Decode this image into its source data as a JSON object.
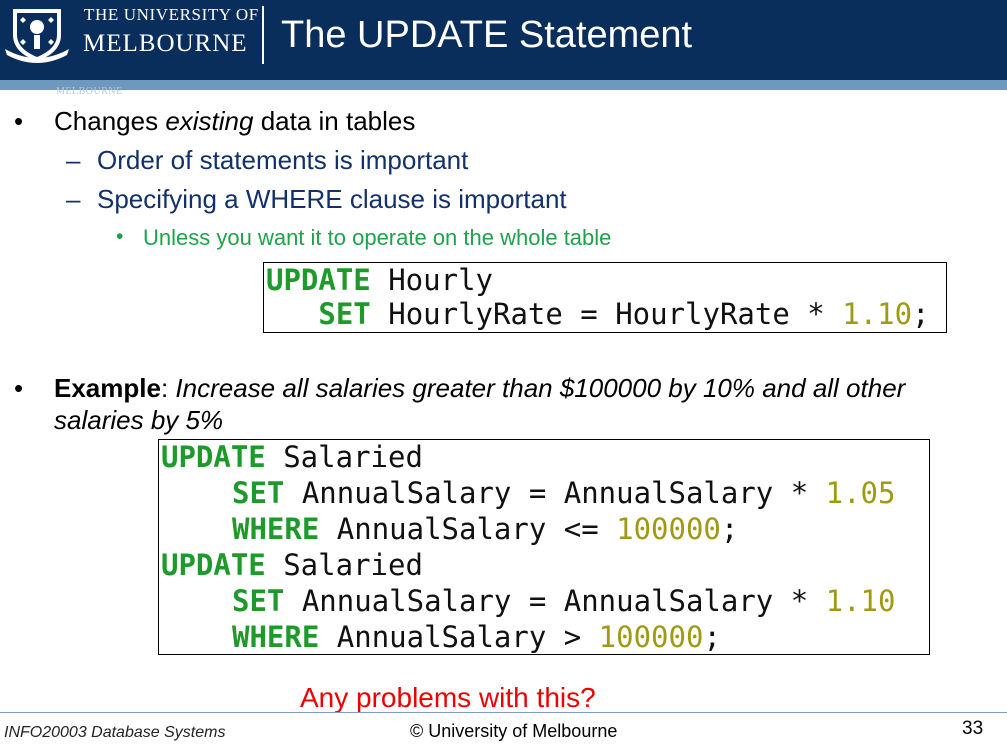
{
  "header": {
    "logo_line1": "THE UNIVERSITY OF",
    "logo_line2": "MELBOURNE",
    "crest_text": "MELBOURNE",
    "title": "The UPDATE Statement"
  },
  "bullets": {
    "b1_prefix": "Changes ",
    "b1_em": "existing",
    "b1_suffix": " data in tables",
    "b1_sub1": "Order of statements is important",
    "b1_sub2": "Specifying a WHERE clause is important",
    "b1_sub2_sub": "Unless you want it to operate on the whole table",
    "bullet_char": "•",
    "dash_char": "–",
    "b2_bold": "Example",
    "b2_colon": ": ",
    "b2_text_line1": "Increase all salaries greater than $100000 by 10% and all other",
    "b2_text_line2": "salaries by 5%"
  },
  "code1": {
    "l1_kw": "UPDATE",
    "l1_rest": " Hourly",
    "l2_indent": "   ",
    "l2_kw": "SET",
    "l2_rest": " HourlyRate = HourlyRate * ",
    "l2_num": "1.10",
    "l2_end": ";"
  },
  "code2": {
    "l1_kw": "UPDATE",
    "l1_rest": " Salaried",
    "l2_kw": "SET",
    "l2_rest": " AnnualSalary = AnnualSalary * ",
    "l2_num": "1.05",
    "l3_kw": "WHERE",
    "l3_rest": " AnnualSalary <= ",
    "l3_num": "100000",
    "l3_end": ";",
    "l4_kw": "UPDATE",
    "l4_rest": " Salaried",
    "l5_kw": "SET",
    "l5_rest": " AnnualSalary = AnnualSalary * ",
    "l5_num": "1.10",
    "l6_kw": "WHERE",
    "l6_rest": " AnnualSalary > ",
    "l6_num": "100000",
    "l6_end": ";"
  },
  "callout": "Any problems with this?",
  "footer": {
    "course": "INFO20003 Database Systems",
    "copyright": "© University of Melbourne",
    "page": "33"
  },
  "colors": {
    "header_bg": "#0a2e5b",
    "stripe": "#6f98bf",
    "sub_bullet": "#12306b",
    "sub_sub_bullet": "#1fa24a",
    "keyword": "#1d9a2a",
    "number": "#a09a12",
    "callout": "#ee0000"
  }
}
